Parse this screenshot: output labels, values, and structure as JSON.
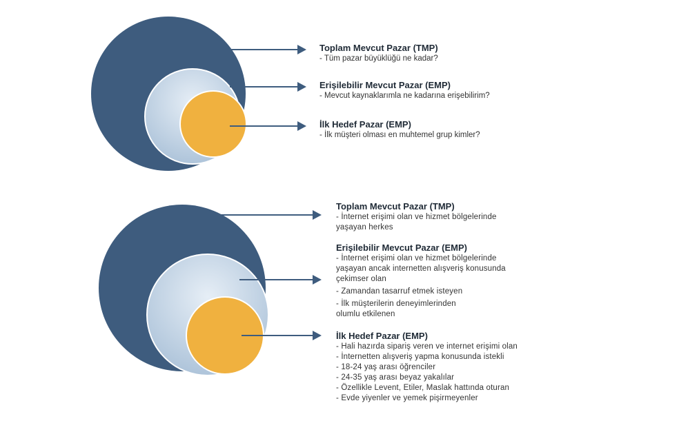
{
  "colors": {
    "outer": "#3e5c7e",
    "middle_light": "#e6eef6",
    "middle_dark": "#aec4da",
    "inner": "#f0b13f",
    "arrow": "#3e5c7e"
  },
  "diagram_top": {
    "tmp": {
      "title": "Toplam Mevcut Pazar (TMP)",
      "lines": [
        "- Tüm pazar büyüklüğü ne kadar?"
      ]
    },
    "emp": {
      "title": "Erişilebilir Mevcut Pazar (EMP)",
      "lines": [
        "- Mevcut kaynaklarımla ne kadarına erişebilirim?"
      ]
    },
    "target": {
      "title": "İlk Hedef Pazar (EMP)",
      "lines": [
        "- İlk müşteri olması en muhtemel grup kimler?"
      ]
    }
  },
  "diagram_bottom": {
    "tmp": {
      "title": "Toplam Mevcut Pazar (TMP)",
      "lines": [
        "- İnternet erişimi olan ve hizmet bölgelerinde",
        "yaşayan herkes"
      ]
    },
    "emp": {
      "title": "Erişilebilir Mevcut Pazar (EMP)",
      "lines": [
        "- İnternet erişimi olan ve hizmet bölgelerinde",
        "yaşayan ancak internetten alışveriş konusunda",
        "çekimser olan",
        "- Zamandan tasarruf etmek isteyen",
        "- İlk müşterilerin deneyimlerinden",
        "olumlu etkilenen"
      ]
    },
    "target": {
      "title": "İlk Hedef Pazar (EMP)",
      "lines": [
        "- Hali hazırda sipariş veren ve internet erişimi olan",
        "- İnternetten alışveriş yapma konusunda istekli",
        "- 18-24 yaş arası öğrenciler",
        "- 24-35 yaş arası beyaz yakalılar",
        "- Özellikle Levent, Etiler, Maslak hattında oturan",
        "- Evde yiyenler ve yemek pişirmeyenler"
      ]
    }
  }
}
